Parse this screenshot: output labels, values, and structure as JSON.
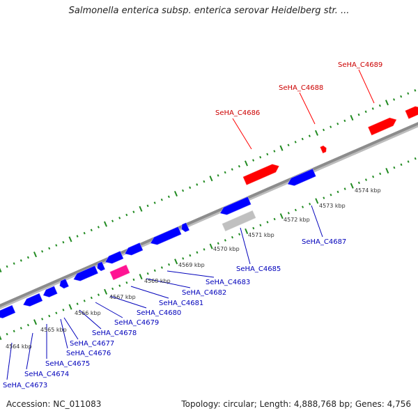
{
  "header": {
    "title": "Salmonella enterica subsp. enterica serovar Heidelberg str. ..."
  },
  "footer": {
    "accession": "Accession: NC_011083",
    "summary": "Topology: circular; Length: 4,888,768 bp; Genes: 4,756"
  },
  "colors": {
    "forward_gene": "#ff0000",
    "reverse_gene": "#0000ff",
    "rna_gene": "#ff1493",
    "pseudo_gene": "#c0c0c0",
    "backbone": "#8c8c8c",
    "ticks": "#228b22",
    "forward_label": "#cc0000",
    "reverse_label": "#0000bb"
  },
  "scale_labels": [
    "4564 kbp",
    "4565 kbp",
    "4566 kbp",
    "4567 kbp",
    "4568 kbp",
    "4569 kbp",
    "4570 kbp",
    "4571 kbp",
    "4572 kbp",
    "4573 kbp",
    "4574 kbp"
  ],
  "forward_genes": [
    {
      "label": "SeHA_C4686"
    },
    {
      "label": "SeHA_C4688"
    },
    {
      "label": "SeHA_C4689"
    }
  ],
  "reverse_genes": [
    {
      "label": "SeHA_C4673"
    },
    {
      "label": "SeHA_C4674"
    },
    {
      "label": "SeHA_C4675"
    },
    {
      "label": "SeHA_C4676"
    },
    {
      "label": "SeHA_C4677"
    },
    {
      "label": "SeHA_C4678"
    },
    {
      "label": "SeHA_C4679"
    },
    {
      "label": "SeHA_C4680"
    },
    {
      "label": "SeHA_C4681"
    },
    {
      "label": "SeHA_C4682"
    },
    {
      "label": "SeHA_C4683"
    },
    {
      "label": "SeHA_C4685"
    },
    {
      "label": "SeHA_C4687"
    }
  ]
}
